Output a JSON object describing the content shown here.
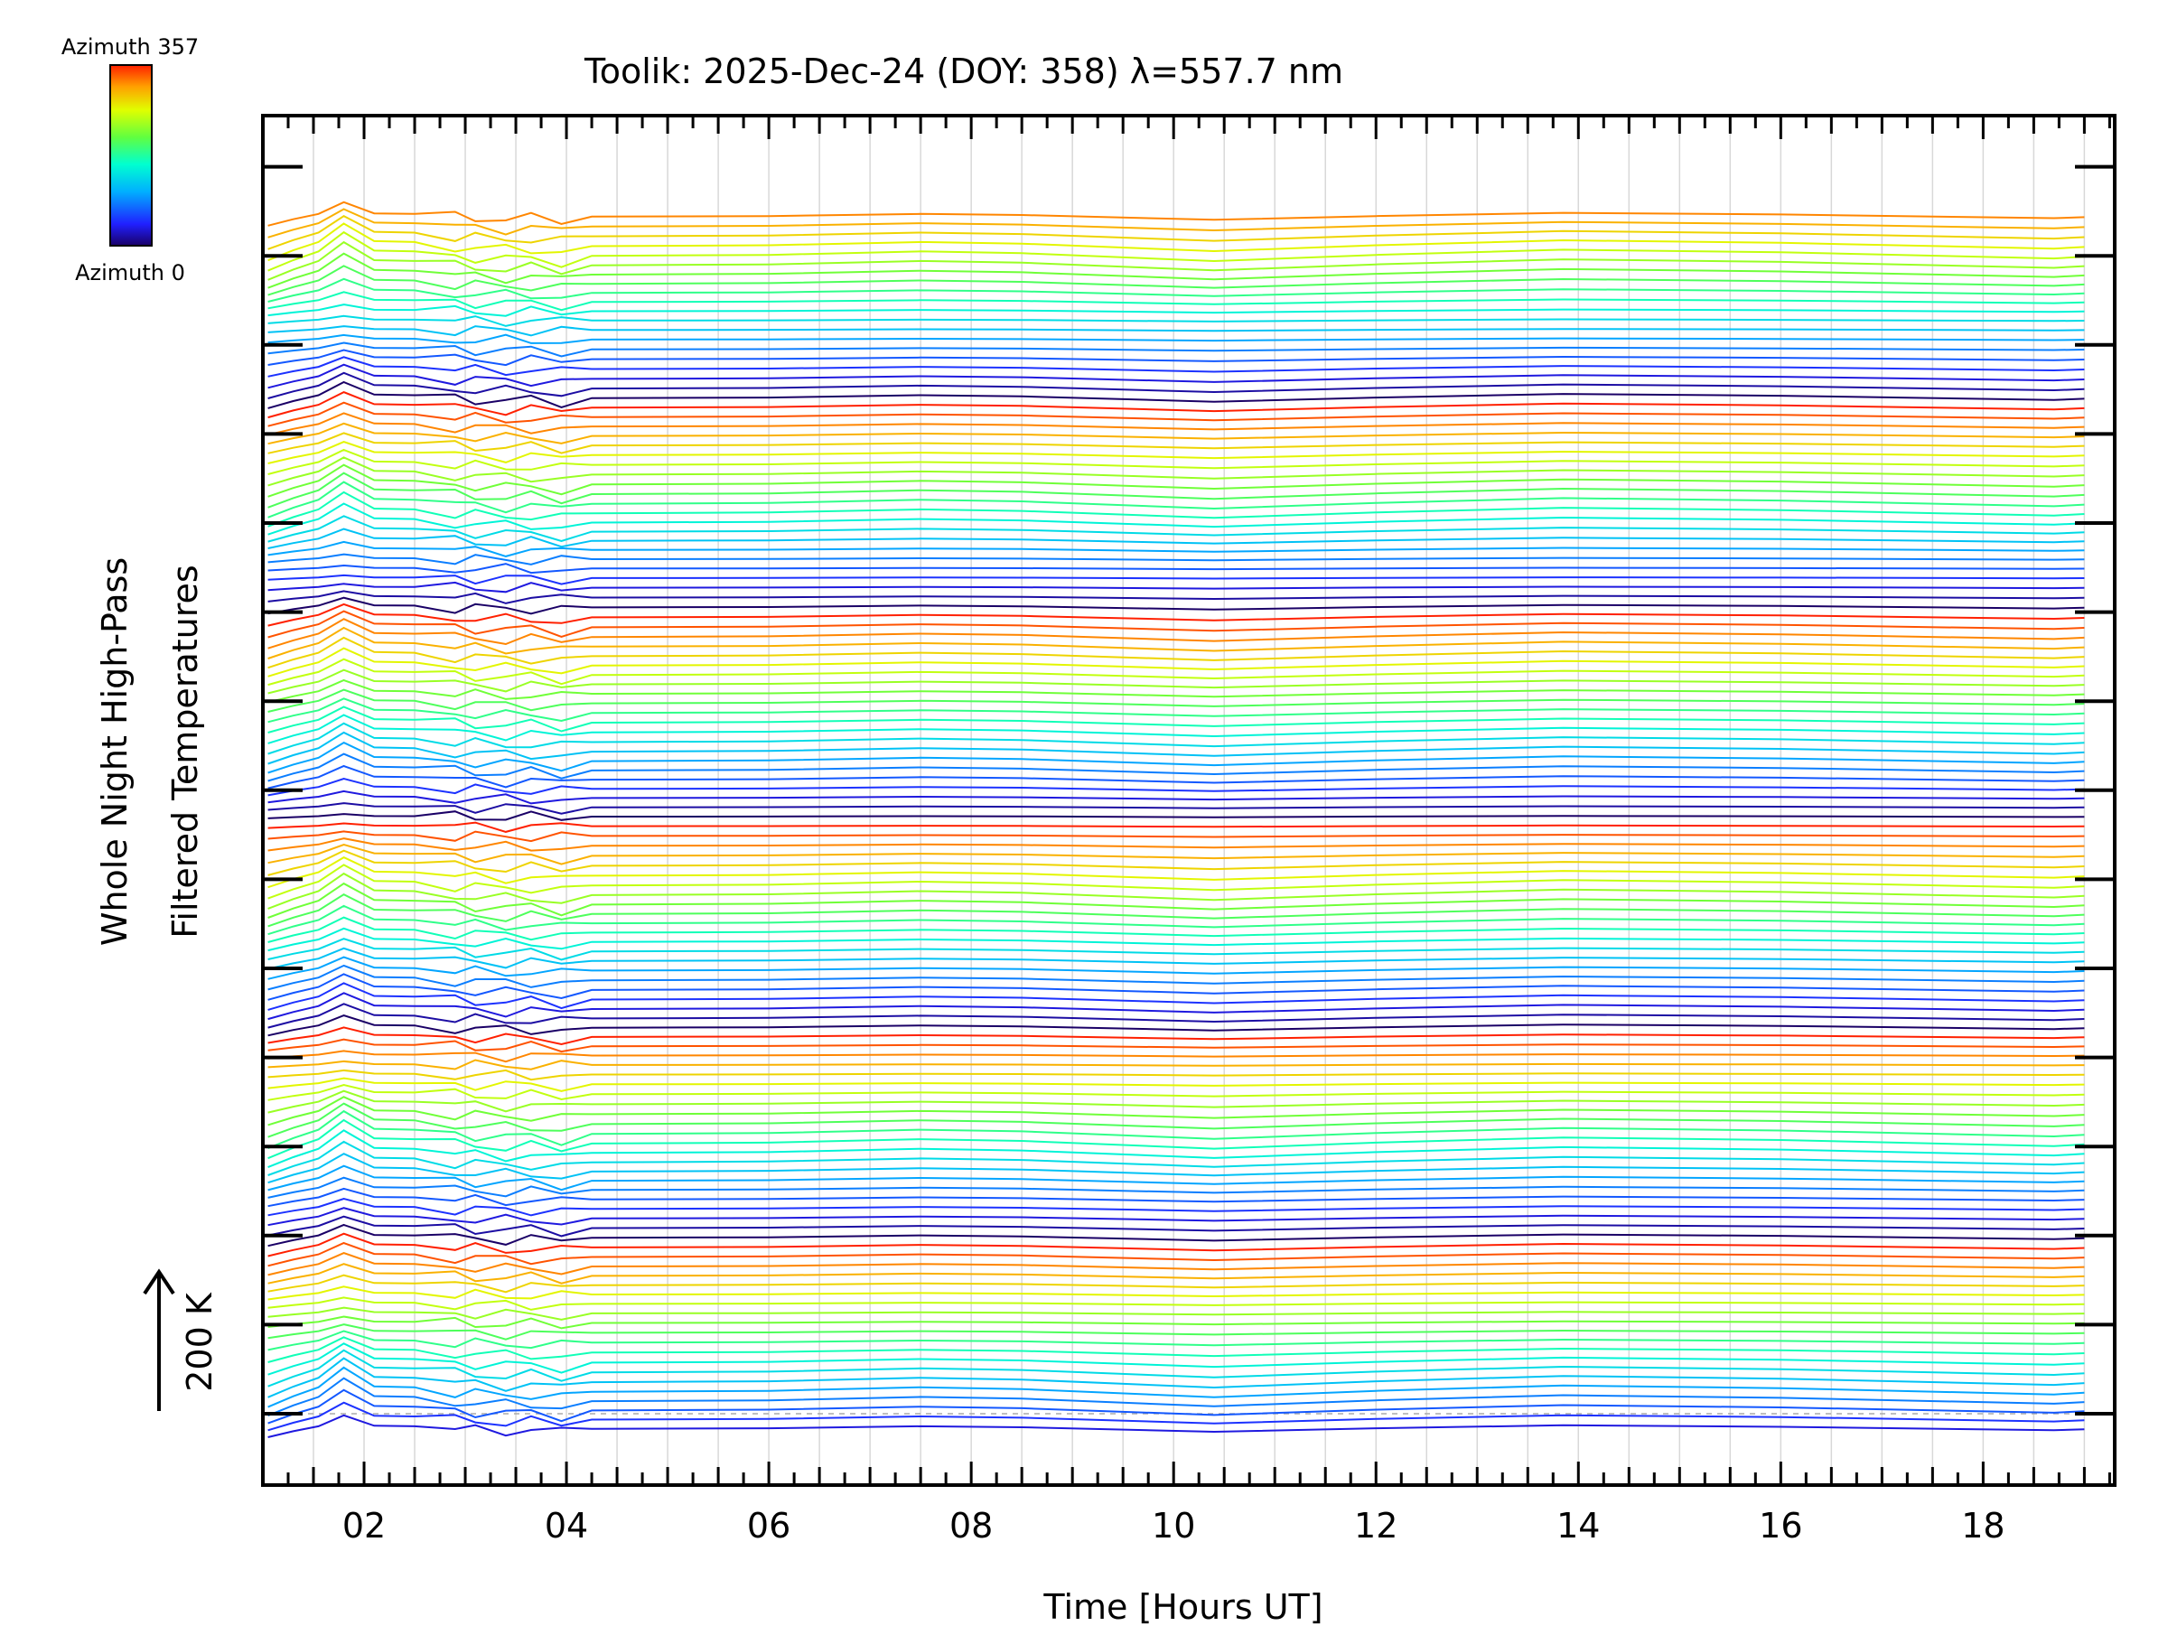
{
  "chart_data": {
    "type": "line",
    "title": "Toolik: 2025-Dec-24 (DOY: 358) λ=557.7 nm",
    "xlabel": "Time [Hours UT]",
    "ylabel_line1": "Whole Night High-Pass",
    "ylabel_line2": "Filtered Temperatures",
    "scale_label": "200 K",
    "xlim": [
      1.0,
      19.3
    ],
    "x_ticks": [
      2,
      4,
      6,
      8,
      10,
      12,
      14,
      16,
      18
    ],
    "x_tick_labels": [
      "02",
      "04",
      "06",
      "08",
      "10",
      "12",
      "14",
      "16",
      "18"
    ],
    "colorbar": {
      "top_label": "Azimuth 357",
      "bottom_label": "Azimuth 0",
      "min": 0,
      "max": 357
    },
    "n_series": 128,
    "series_offset_note": "Each azimuth series is vertically offset; arrow indicates 200 K scale",
    "x": [
      1.05,
      1.3,
      1.55,
      1.8,
      2.1,
      2.5,
      2.9,
      3.1,
      3.4,
      3.65,
      3.95,
      4.25,
      6.0,
      7.5,
      8.5,
      10.4,
      12.0,
      13.85,
      16.0,
      18.7,
      19.0
    ],
    "profile": [
      -20,
      -8,
      2,
      24,
      3,
      2,
      -4,
      -5,
      -7,
      -6,
      -10,
      -3,
      -2,
      2,
      0,
      -9,
      -2,
      4,
      1,
      -6,
      -4
    ],
    "colors": {
      "low": "#000080",
      "mid": "#00ff80",
      "high": "#ff2000"
    }
  }
}
